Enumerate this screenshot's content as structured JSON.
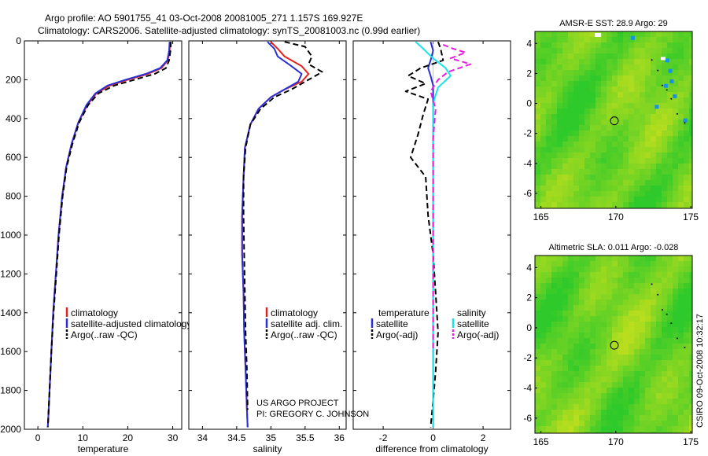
{
  "header": {
    "line1": "Argo profile: AO 5901755_41 03-Oct-2008 20081005_271 1.157S 169.927E",
    "line2": "Climatology: CARS2006. Satellite-adjusted climatology: synTS_20081003.nc (0.99d earlier)"
  },
  "credit": {
    "line1": "US ARGO PROJECT",
    "line2": "PI: GREGORY C. JOHNSON"
  },
  "side_stamp": "CSIRO 09-Oct-2008 10:32:17",
  "colors": {
    "climatology": "#e8201b",
    "satellite": "#2a2fd8",
    "argo": "#000000",
    "sal_satellite": "#19e3ea",
    "sal_argo": "#ea1ee0",
    "map_green": "#2ec92a",
    "map_yellow": "#c9e01c"
  },
  "chart_data": [
    {
      "id": "temperature",
      "type": "line",
      "xlabel": "temperature",
      "ylabel": "",
      "xlim": [
        -3,
        32
      ],
      "ylim": [
        2000,
        0
      ],
      "y_reversed": true,
      "xticks": [
        0,
        10,
        20,
        30
      ],
      "yticks": [
        0,
        200,
        400,
        600,
        800,
        1000,
        1200,
        1400,
        1600,
        1800,
        2000
      ],
      "legend": [
        "climatology",
        "satellite-adjusted climatology",
        "Argo(..raw -QC)"
      ],
      "series": [
        {
          "name": "climatology",
          "color_key": "climatology",
          "dash": "solid",
          "x": [
            29.4,
            29.3,
            28.9,
            27.5,
            24.5,
            20.0,
            16.0,
            13.0,
            11.0,
            9.0,
            7.5,
            6.3,
            5.4,
            4.6,
            4.0,
            3.4,
            3.0,
            2.6,
            2.3,
            2.2
          ],
          "y": [
            5,
            50,
            100,
            140,
            170,
            200,
            230,
            270,
            330,
            420,
            530,
            650,
            800,
            1000,
            1200,
            1400,
            1600,
            1800,
            1950,
            1990
          ]
        },
        {
          "name": "satellite-adjusted climatology",
          "color_key": "satellite",
          "dash": "solid",
          "x": [
            29.3,
            29.2,
            28.8,
            27.2,
            24.0,
            19.5,
            15.5,
            12.8,
            10.8,
            9.0,
            7.5,
            6.3,
            5.4,
            4.6,
            4.0,
            3.4,
            3.0,
            2.6,
            2.3,
            2.2
          ],
          "y": [
            5,
            50,
            100,
            140,
            170,
            200,
            230,
            270,
            330,
            420,
            530,
            650,
            800,
            1000,
            1200,
            1400,
            1600,
            1800,
            1950,
            1990
          ]
        },
        {
          "name": "Argo(..raw -QC)",
          "color_key": "argo",
          "dash": "dashed",
          "x": [
            29.6,
            29.5,
            29.2,
            28.5,
            26.0,
            21.5,
            17.0,
            13.5,
            11.2,
            9.2,
            7.7,
            6.4,
            5.5,
            4.7,
            4.1,
            3.5,
            3.0,
            2.6,
            2.3,
            2.2
          ],
          "y": [
            5,
            50,
            100,
            140,
            170,
            200,
            230,
            270,
            330,
            420,
            530,
            650,
            800,
            1000,
            1200,
            1400,
            1600,
            1800,
            1950,
            1990
          ]
        }
      ]
    },
    {
      "id": "salinity",
      "type": "line",
      "xlabel": "salinity",
      "ylabel": "",
      "xlim": [
        33.8,
        36.1
      ],
      "ylim": [
        2000,
        0
      ],
      "y_reversed": true,
      "xticks": [
        34,
        34.5,
        35,
        35.5,
        36
      ],
      "legend": [
        "climatology",
        "satellite adj. clim.",
        "Argo(..raw -QC)"
      ],
      "series": [
        {
          "name": "climatology",
          "color_key": "climatology",
          "dash": "solid",
          "x": [
            35.0,
            35.1,
            35.2,
            35.45,
            35.55,
            35.45,
            35.2,
            35.0,
            34.82,
            34.7,
            34.62,
            34.6,
            34.58,
            34.58,
            34.6,
            34.61,
            34.63,
            34.65,
            34.66
          ],
          "y": [
            5,
            40,
            80,
            130,
            170,
            210,
            250,
            290,
            350,
            430,
            550,
            700,
            900,
            1100,
            1300,
            1500,
            1700,
            1900,
            1990
          ]
        },
        {
          "name": "satellite adj. clim.",
          "color_key": "satellite",
          "dash": "solid",
          "x": [
            34.95,
            35.05,
            35.1,
            35.3,
            35.45,
            35.4,
            35.2,
            35.0,
            34.82,
            34.7,
            34.62,
            34.6,
            34.58,
            34.58,
            34.6,
            34.61,
            34.63,
            34.65,
            34.66
          ],
          "y": [
            5,
            40,
            80,
            130,
            170,
            210,
            250,
            290,
            350,
            430,
            550,
            700,
            900,
            1100,
            1300,
            1500,
            1700,
            1900,
            1990
          ]
        },
        {
          "name": "Argo(..raw -QC)",
          "color_key": "argo",
          "dash": "dashed",
          "x": [
            35.2,
            35.5,
            35.6,
            35.55,
            35.75,
            35.55,
            35.3,
            35.05,
            34.85,
            34.7,
            34.63,
            34.6,
            34.6,
            34.61,
            34.62,
            34.63,
            34.65,
            34.66
          ],
          "y": [
            5,
            30,
            80,
            120,
            160,
            200,
            250,
            290,
            350,
            430,
            550,
            700,
            900,
            1100,
            1300,
            1500,
            1700,
            1900
          ]
        }
      ]
    },
    {
      "id": "difference",
      "type": "line",
      "xlabel": "difference from climatology",
      "ylabel": "",
      "xlim": [
        -3.2,
        3.1
      ],
      "ylim": [
        2000,
        0
      ],
      "y_reversed": true,
      "xticks": [
        -2,
        0,
        2
      ],
      "legend": [
        "temperature",
        "satellite",
        "Argo(-adj)",
        "salinity",
        "satellite",
        "Argo(-adj)"
      ],
      "series": [
        {
          "name": "temperature satellite",
          "color_key": "satellite",
          "dash": "solid",
          "x": [
            -0.1,
            0.0,
            -0.1,
            -0.2,
            -0.1,
            0.0,
            0.0,
            0.0,
            0.0,
            0.0,
            0.0,
            0.0,
            0.0,
            0.0
          ],
          "y": [
            5,
            50,
            100,
            140,
            180,
            230,
            300,
            400,
            600,
            800,
            1000,
            1200,
            1600,
            1990
          ]
        },
        {
          "name": "temperature Argo(-adj)",
          "color_key": "argo",
          "dash": "dashed",
          "x": [
            0.2,
            0.3,
            0.4,
            -0.5,
            -1.0,
            -0.3,
            -1.1,
            -0.2,
            -0.4,
            -0.6,
            -0.9,
            -0.3,
            -0.2,
            0.0,
            0.1,
            0.2,
            0.1,
            0.0,
            -0.1
          ],
          "y": [
            5,
            40,
            100,
            140,
            180,
            220,
            260,
            300,
            380,
            480,
            600,
            700,
            900,
            1100,
            1300,
            1500,
            1700,
            1850,
            1990
          ]
        },
        {
          "name": "salinity satellite",
          "color_key": "sal_satellite",
          "dash": "solid",
          "x": [
            -0.7,
            -0.4,
            0.0,
            0.5,
            0.7,
            0.2,
            0.0,
            0.0,
            0.0,
            0.0,
            0.0,
            0.0,
            0.0
          ],
          "y": [
            5,
            40,
            90,
            140,
            180,
            240,
            320,
            450,
            700,
            1000,
            1300,
            1600,
            1990
          ]
        },
        {
          "name": "salinity Argo(-adj)",
          "color_key": "sal_argo",
          "dash": "dashed",
          "x": [
            0.4,
            0.8,
            1.3,
            0.7,
            1.5,
            0.6,
            0.2,
            -0.1,
            0.1,
            0.0,
            0.0,
            0.0,
            0.0
          ],
          "y": [
            20,
            40,
            60,
            90,
            120,
            160,
            200,
            260,
            350,
            500,
            800,
            1200,
            1600
          ]
        }
      ]
    },
    {
      "id": "sst_map",
      "type": "heatmap",
      "title": "AMSR-E SST: 28.9 Argo: 29",
      "xlim": [
        164.6,
        175.1
      ],
      "ylim": [
        -7.0,
        4.8
      ],
      "xticks": [
        165,
        170,
        175
      ],
      "yticks": [
        4,
        2,
        0,
        -2,
        -4,
        -6
      ],
      "marker": {
        "x": 169.9,
        "y": -1.16
      }
    },
    {
      "id": "sla_map",
      "type": "heatmap",
      "title": "Altimetric SLA: 0.011 Argo: -0.028",
      "xlim": [
        164.6,
        175.1
      ],
      "ylim": [
        -7.0,
        4.8
      ],
      "xticks": [
        165,
        170,
        175
      ],
      "yticks": [
        4,
        2,
        0,
        -2,
        -4,
        -6
      ],
      "marker": {
        "x": 169.9,
        "y": -1.16
      }
    }
  ]
}
